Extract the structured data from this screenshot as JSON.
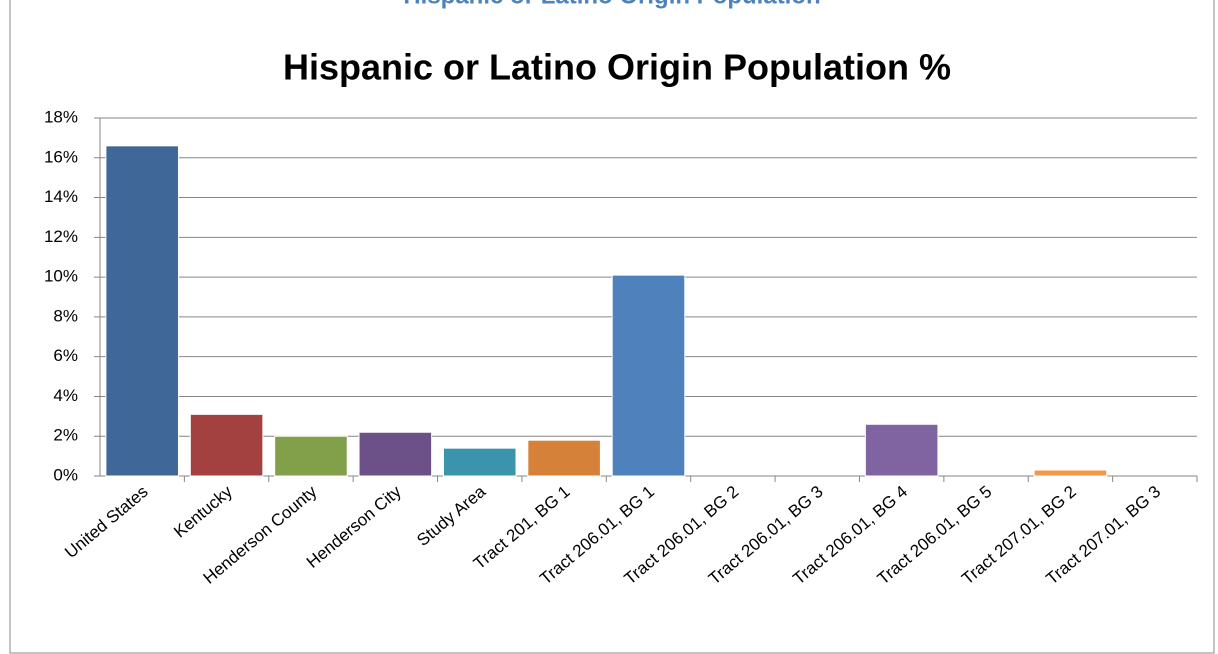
{
  "heading": "Hispanic or Latino Origin Population",
  "chart_data": {
    "type": "bar",
    "title": "Hispanic or Latino Origin Population %",
    "categories": [
      "United States",
      "Kentucky",
      "Henderson County",
      "Henderson City",
      "Study Area",
      "Tract 201, BG 1",
      "Tract 206.01, BG 1",
      "Tract 206.01, BG 2",
      "Tract 206.01, BG 3",
      "Tract 206.01, BG 4",
      "Tract 206.01, BG 5",
      "Tract 207.01, BG 2",
      "Tract 207.01, BG 3"
    ],
    "values": [
      16.6,
      3.1,
      2.0,
      2.2,
      1.4,
      1.8,
      10.1,
      0,
      0,
      2.6,
      0,
      0.3,
      0
    ],
    "colors": [
      "#3f6797",
      "#a24140",
      "#82a04a",
      "#6b5188",
      "#3a95ac",
      "#d5813a",
      "#4f81bd",
      "#c0504d",
      "#9bbb59",
      "#8064a2",
      "#4bacc6",
      "#f79646",
      "#2c4d75"
    ],
    "ylim": [
      0,
      18
    ],
    "yticks": [
      {
        "value": 0,
        "label": "0%"
      },
      {
        "value": 2,
        "label": "2%"
      },
      {
        "value": 4,
        "label": "4%"
      },
      {
        "value": 6,
        "label": "6%"
      },
      {
        "value": 8,
        "label": "8%"
      },
      {
        "value": 10,
        "label": "10%"
      },
      {
        "value": 12,
        "label": "12%"
      },
      {
        "value": 14,
        "label": "14%"
      },
      {
        "value": 16,
        "label": "16%"
      },
      {
        "value": 18,
        "label": "18%"
      }
    ],
    "grid": true
  }
}
